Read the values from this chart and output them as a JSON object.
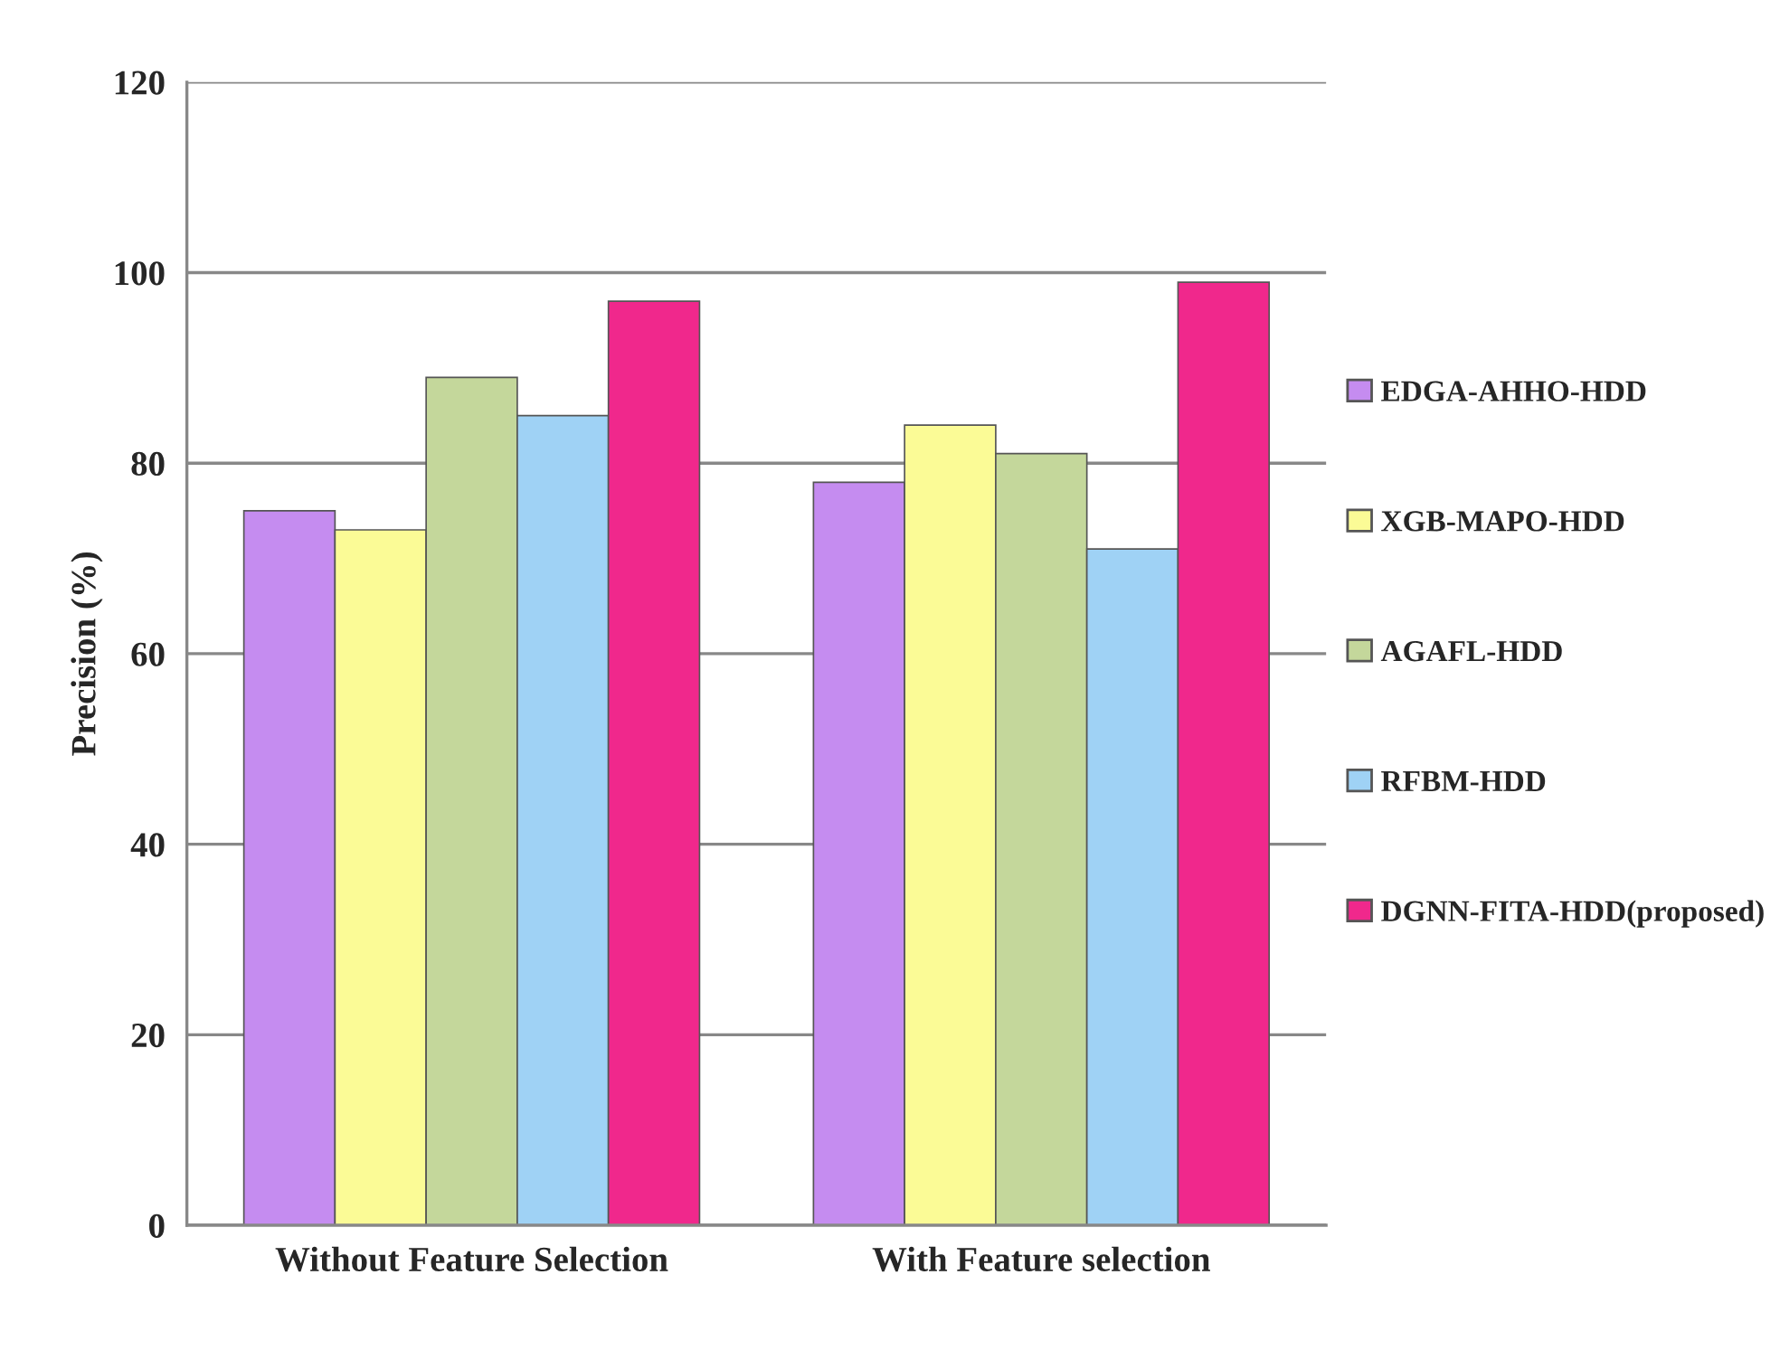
{
  "chart_data": {
    "type": "bar",
    "ylabel": "Precision (%)",
    "categories": [
      "Without Feature Selection",
      "With Feature selection"
    ],
    "series": [
      {
        "name": "EDGA-AHHO-HDD",
        "color": "#c58cf0",
        "values": [
          75,
          78
        ]
      },
      {
        "name": "XGB-MAPO-HDD",
        "color": "#fbfb96",
        "values": [
          73,
          84
        ]
      },
      {
        "name": "AGAFL-HDD",
        "color": "#c4d79b",
        "values": [
          89,
          81
        ]
      },
      {
        "name": "RFBM-HDD",
        "color": "#9fd2f5",
        "values": [
          85,
          71
        ]
      },
      {
        "name": "DGNN-FITA-HDD(proposed)",
        "color": "#f0288c",
        "values": [
          97,
          99
        ]
      }
    ],
    "ylim": [
      0,
      120
    ],
    "yticks": [
      0,
      20,
      40,
      60,
      80,
      100,
      120
    ],
    "grid": "y",
    "legend": "right"
  }
}
